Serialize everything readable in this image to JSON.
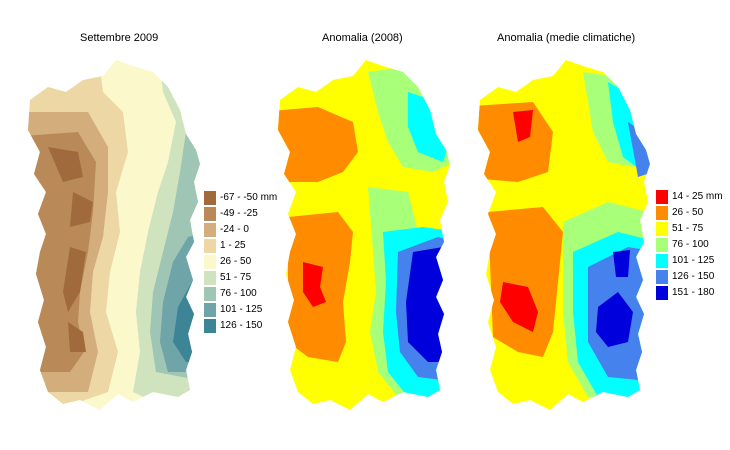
{
  "maps": [
    {
      "title": "Settembre 2009"
    },
    {
      "title": "Anomalia (2008)"
    },
    {
      "title": "Anomalia (medie climatiche)"
    }
  ],
  "legend1": [
    {
      "label": "-67 - -50 mm",
      "color": "#a06a3c"
    },
    {
      "label": "-49 - -25",
      "color": "#b98a57"
    },
    {
      "label": "-24 - 0",
      "color": "#d3ae7c"
    },
    {
      "label": "1 - 25",
      "color": "#ecd7a5"
    },
    {
      "label": "26 - 50",
      "color": "#fbf8cc"
    },
    {
      "label": "51 - 75",
      "color": "#cfe3be"
    },
    {
      "label": "76 - 100",
      "color": "#9fc5b4"
    },
    {
      "label": "101 - 125",
      "color": "#6fa4a8"
    },
    {
      "label": "126 - 150",
      "color": "#3d8497"
    }
  ],
  "legend2": [
    {
      "label": "14 - 25 mm",
      "color": "#ff0000"
    },
    {
      "label": "26 - 50",
      "color": "#ff8c00"
    },
    {
      "label": "51 - 75",
      "color": "#ffff00"
    },
    {
      "label": "76 - 100",
      "color": "#a8ff78"
    },
    {
      "label": "101 - 125",
      "color": "#00ffff"
    },
    {
      "label": "126 - 150",
      "color": "#4682ee"
    },
    {
      "label": "151 - 180",
      "color": "#0000dc"
    }
  ]
}
